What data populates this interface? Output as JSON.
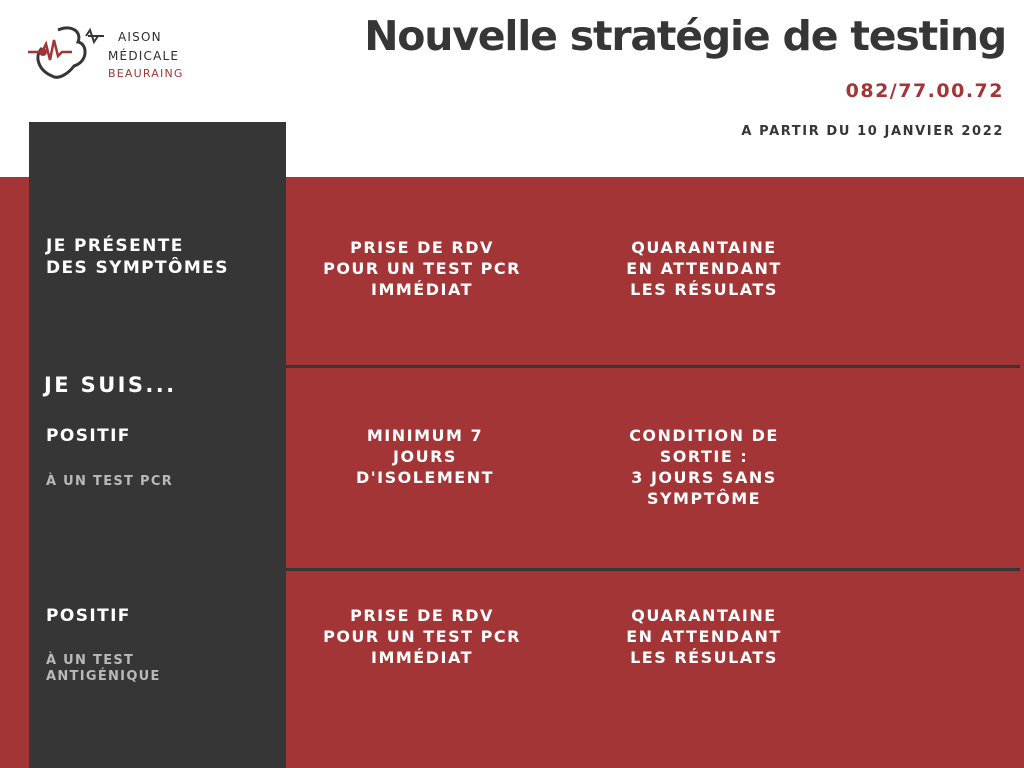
{
  "brand": {
    "logo_line1": "AISON",
    "logo_line2": "MÉDICALE",
    "logo_line3": "BEAURAING",
    "accent_color": "#a33536",
    "dark_color": "#363636"
  },
  "header": {
    "title": "Nouvelle stratégie de testing",
    "phone": "082/77.00.72",
    "date": "A PARTIR DU 10 JANVIER 2022"
  },
  "rows": {
    "r1": {
      "label": "JE PRÉSENTE\nDES SYMPTÔMES",
      "col1": "PRISE DE RDV\nPOUR UN TEST PCR\nIMMÉDIAT",
      "col2": "QUARANTAINE\nEN ATTENDANT\nLES RÉSULATS"
    },
    "section_label": "JE SUIS...",
    "r2": {
      "label": "POSITIF",
      "sublabel": "À UN TEST PCR",
      "col1": "MINIMUM 7\nJOURS\nD'ISOLEMENT",
      "col2": "CONDITION DE\nSORTIE :\n3 JOURS SANS\nSYMPTÔME"
    },
    "r3": {
      "label": "POSITIF",
      "sublabel": "À UN TEST\nANTIGÉNIQUE",
      "col1": "PRISE DE RDV\nPOUR UN TEST PCR\nIMMÉDIAT",
      "col2": "QUARANTAINE\nEN ATTENDANT\nLES RÉSULATS"
    }
  }
}
